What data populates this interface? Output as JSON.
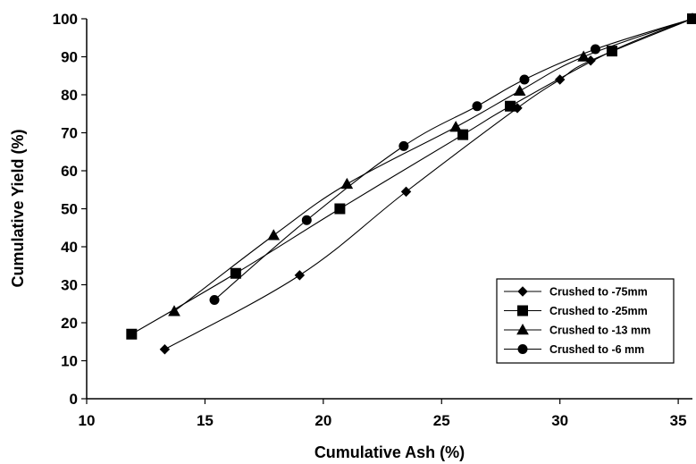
{
  "chart_data": {
    "type": "line",
    "title": "",
    "xlabel": "Cumulative Ash (%)",
    "ylabel": "Cumulative Yield (%)",
    "xlim": [
      10,
      35.6
    ],
    "ylim": [
      0,
      100
    ],
    "xticks": [
      10,
      15,
      20,
      25,
      30,
      35
    ],
    "yticks": [
      0,
      10,
      20,
      30,
      40,
      50,
      60,
      70,
      80,
      90,
      100
    ],
    "grid": false,
    "legend_position": "bottom-right",
    "series": [
      {
        "name": "Crushed to -75mm",
        "marker": "diamond",
        "x": [
          13.3,
          19.0,
          23.5,
          28.2,
          30.0,
          31.3,
          35.6
        ],
        "y": [
          13,
          32.5,
          54.5,
          76.5,
          84,
          89,
          100
        ]
      },
      {
        "name": "Crushed to -25mm",
        "marker": "square",
        "x": [
          11.9,
          16.3,
          20.7,
          25.9,
          27.9,
          32.2,
          35.6
        ],
        "y": [
          17,
          33,
          50,
          69.5,
          77,
          91.5,
          100
        ]
      },
      {
        "name": "Crushed to -13 mm",
        "marker": "triangle",
        "x": [
          13.7,
          17.9,
          21.0,
          25.6,
          28.3,
          31.0,
          35.6
        ],
        "y": [
          23,
          43,
          56.5,
          71.5,
          81,
          90,
          100
        ]
      },
      {
        "name": "Crushed to -6 mm",
        "marker": "circle",
        "x": [
          15.4,
          19.3,
          23.4,
          26.5,
          28.5,
          31.5,
          35.6
        ],
        "y": [
          26,
          47,
          66.5,
          77,
          84,
          92,
          100
        ]
      }
    ]
  }
}
